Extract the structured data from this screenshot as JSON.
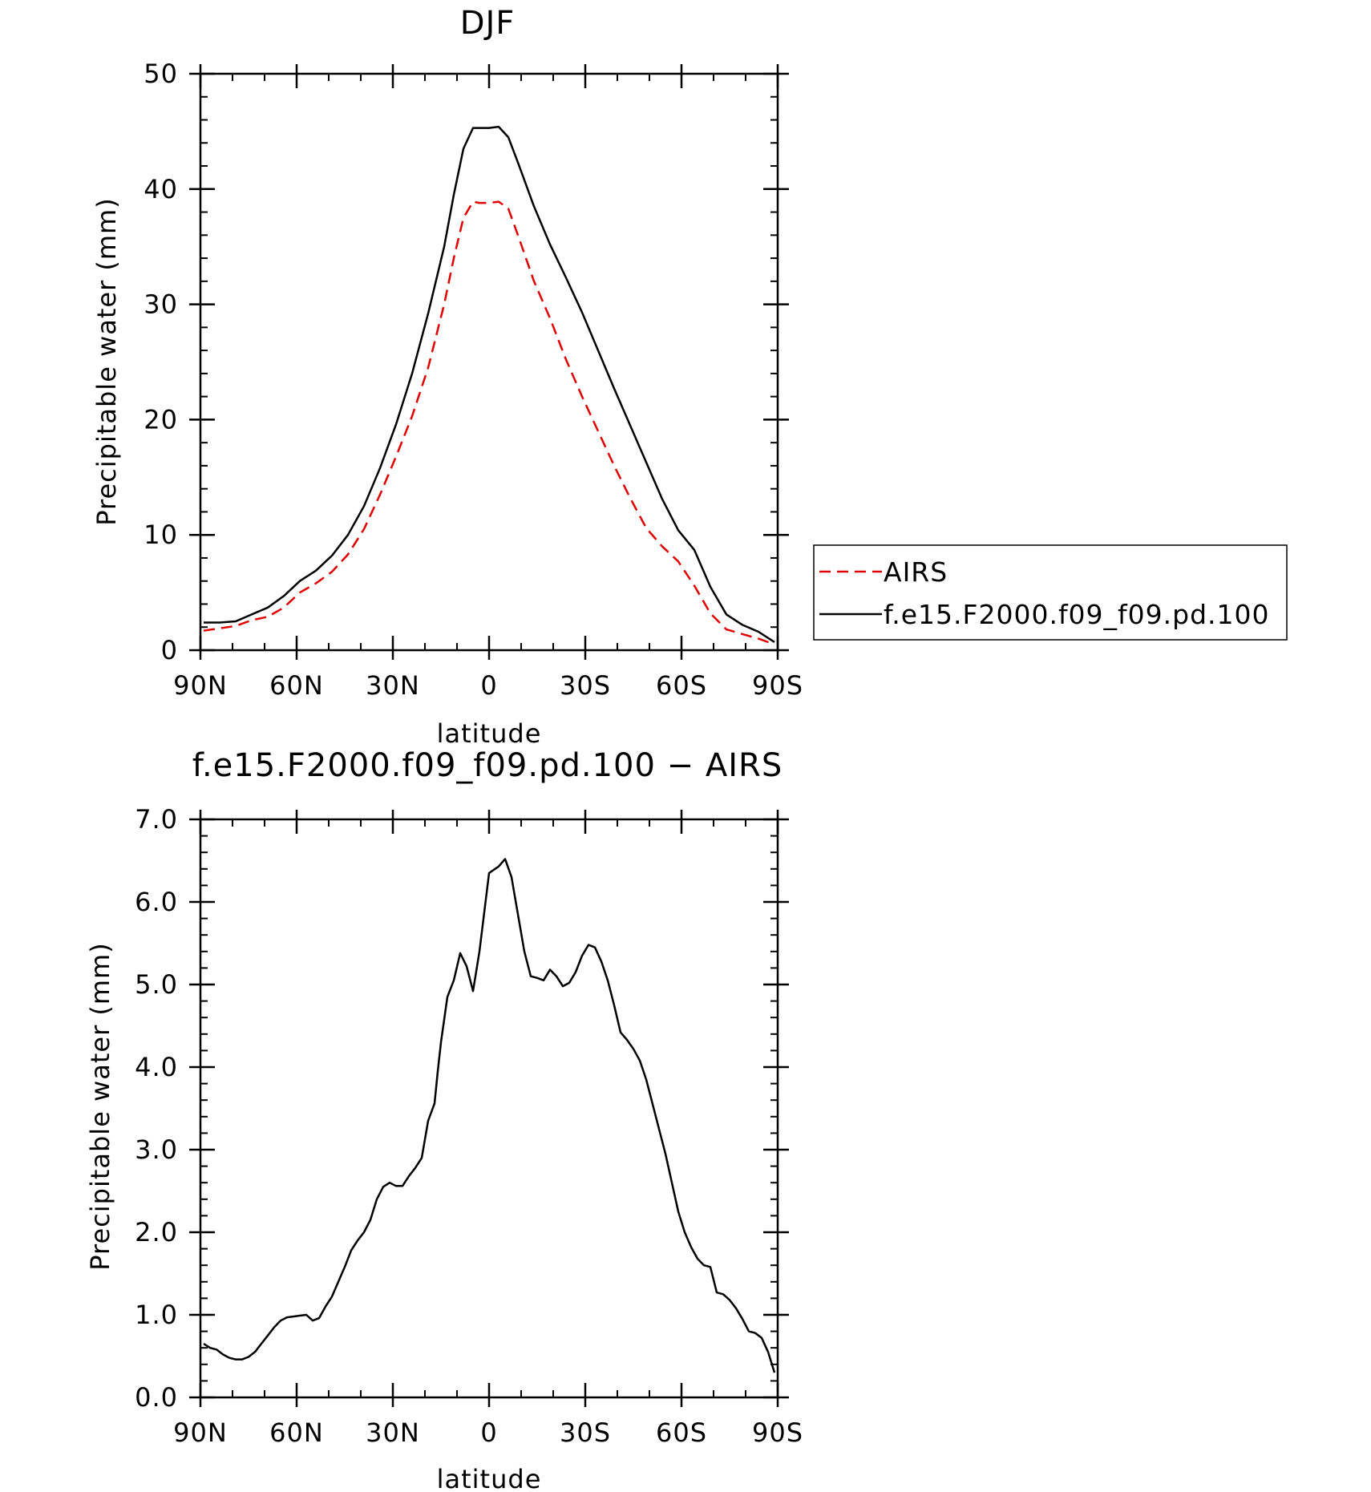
{
  "chart_data": [
    {
      "type": "line",
      "title": "DJF",
      "xlabel": "latitude",
      "ylabel": "Precipitable water (mm)",
      "xlim": [
        -90,
        90
      ],
      "ylim": [
        0,
        50
      ],
      "x_ticks": [
        {
          "value": -90,
          "label": "90N"
        },
        {
          "value": -60,
          "label": "60N"
        },
        {
          "value": -30,
          "label": "30N"
        },
        {
          "value": 0,
          "label": "0"
        },
        {
          "value": 30,
          "label": "30S"
        },
        {
          "value": 60,
          "label": "60S"
        },
        {
          "value": 90,
          "label": "90S"
        }
      ],
      "y_ticks": [
        {
          "value": 0,
          "label": "0"
        },
        {
          "value": 10,
          "label": "10"
        },
        {
          "value": 20,
          "label": "20"
        },
        {
          "value": 30,
          "label": "30"
        },
        {
          "value": 40,
          "label": "40"
        },
        {
          "value": 50,
          "label": "50"
        }
      ],
      "legend": {
        "placement": "right, outside plot"
      },
      "series": [
        {
          "name": "AIRS",
          "color": "#e00000",
          "dash": "dashed",
          "x": [
            -89,
            -84,
            -79,
            -74,
            -69,
            -64,
            -59,
            -54,
            -49,
            -44,
            -39,
            -34,
            -29,
            -24,
            -19,
            -14,
            -11,
            -8,
            -5,
            -3,
            0,
            3,
            6,
            9,
            14,
            19,
            24,
            29,
            34,
            39,
            44,
            49,
            54,
            59,
            64,
            69,
            74,
            79,
            84,
            89
          ],
          "y": [
            1.7,
            1.9,
            2.1,
            2.6,
            2.9,
            3.7,
            5.0,
            5.8,
            6.8,
            8.3,
            10.5,
            13.5,
            16.8,
            20.3,
            24.5,
            30,
            34,
            37.5,
            38.9,
            38.8,
            38.8,
            38.9,
            38.3,
            36,
            32,
            28.8,
            25.2,
            22,
            19,
            16,
            13.2,
            10.6,
            9.0,
            7.7,
            5.6,
            3.2,
            1.8,
            1.4,
            1.0,
            0.5
          ]
        },
        {
          "name": "f.e15.F2000.f09_f09.pd.100",
          "color": "#000000",
          "dash": "solid",
          "x": [
            -89,
            -84,
            -79,
            -74,
            -69,
            -64,
            -59,
            -54,
            -49,
            -44,
            -39,
            -34,
            -29,
            -24,
            -19,
            -14,
            -11,
            -8,
            -5,
            -3,
            0,
            3,
            6,
            9,
            14,
            19,
            24,
            29,
            34,
            39,
            44,
            49,
            54,
            59,
            64,
            69,
            74,
            79,
            84,
            89
          ],
          "y": [
            2.4,
            2.4,
            2.5,
            3.1,
            3.7,
            4.7,
            6.0,
            6.9,
            8.2,
            10.0,
            12.5,
            15.8,
            19.6,
            24,
            29.2,
            35,
            39.5,
            43.5,
            45.3,
            45.3,
            45.3,
            45.4,
            44.5,
            42.3,
            38.5,
            35.2,
            32.3,
            29.3,
            26,
            22.7,
            19.5,
            16.3,
            13.1,
            10.4,
            8.7,
            5.5,
            3.1,
            2.2,
            1.6,
            0.7
          ]
        }
      ]
    },
    {
      "type": "line",
      "title": "f.e15.F2000.f09_f09.pd.100 − AIRS",
      "xlabel": "latitude",
      "ylabel": "Precipitable water (mm)",
      "xlim": [
        -90,
        90
      ],
      "ylim": [
        0,
        7
      ],
      "x_ticks": [
        {
          "value": -90,
          "label": "90N"
        },
        {
          "value": -60,
          "label": "60N"
        },
        {
          "value": -30,
          "label": "30N"
        },
        {
          "value": 0,
          "label": "0"
        },
        {
          "value": 30,
          "label": "30S"
        },
        {
          "value": 60,
          "label": "60S"
        },
        {
          "value": 90,
          "label": "90S"
        }
      ],
      "y_ticks": [
        {
          "value": 0,
          "label": "0.0"
        },
        {
          "value": 1,
          "label": "1.0"
        },
        {
          "value": 2,
          "label": "2.0"
        },
        {
          "value": 3,
          "label": "3.0"
        },
        {
          "value": 4,
          "label": "4.0"
        },
        {
          "value": 5,
          "label": "5.0"
        },
        {
          "value": 6,
          "label": "6.0"
        },
        {
          "value": 7,
          "label": "7.0"
        }
      ],
      "series": [
        {
          "color": "#000000",
          "dash": "solid",
          "x": [
            -89,
            -87,
            -85,
            -83,
            -81,
            -79,
            -77,
            -75,
            -73,
            -71,
            -69,
            -67,
            -65,
            -63,
            -61,
            -59,
            -57,
            -55,
            -53,
            -51,
            -49,
            -47,
            -45,
            -43,
            -41,
            -39,
            -37,
            -35,
            -33,
            -31,
            -29,
            -27,
            -25,
            -23,
            -21,
            -19,
            -17,
            -16,
            -15,
            -13,
            -11,
            -9,
            -7,
            -5,
            -3,
            0,
            3,
            5,
            7,
            9,
            11,
            13,
            15,
            17,
            19,
            21,
            23,
            25,
            27,
            29,
            31,
            33,
            35,
            37,
            39,
            41,
            43,
            45,
            47,
            49,
            51,
            53,
            55,
            57,
            59,
            61,
            63,
            65,
            67,
            69,
            71,
            73,
            75,
            77,
            79,
            81,
            83,
            85,
            87,
            89
          ],
          "y": [
            0.65,
            0.6,
            0.58,
            0.52,
            0.48,
            0.46,
            0.46,
            0.49,
            0.55,
            0.65,
            0.75,
            0.85,
            0.93,
            0.97,
            0.98,
            0.99,
            1.0,
            0.93,
            0.96,
            1.1,
            1.22,
            1.4,
            1.58,
            1.78,
            1.9,
            2.0,
            2.15,
            2.4,
            2.55,
            2.6,
            2.56,
            2.56,
            2.68,
            2.78,
            2.9,
            3.35,
            3.56,
            3.95,
            4.3,
            4.85,
            5.05,
            5.38,
            5.22,
            4.92,
            5.4,
            6.35,
            6.43,
            6.52,
            6.3,
            5.85,
            5.4,
            5.1,
            5.08,
            5.05,
            5.18,
            5.1,
            4.98,
            5.02,
            5.15,
            5.35,
            5.48,
            5.45,
            5.28,
            5.05,
            4.75,
            4.42,
            4.33,
            4.22,
            4.08,
            3.85,
            3.55,
            3.25,
            2.95,
            2.6,
            2.25,
            2.0,
            1.82,
            1.68,
            1.6,
            1.58,
            1.27,
            1.25,
            1.18,
            1.08,
            0.95,
            0.8,
            0.78,
            0.72,
            0.55,
            0.3
          ]
        }
      ]
    }
  ]
}
